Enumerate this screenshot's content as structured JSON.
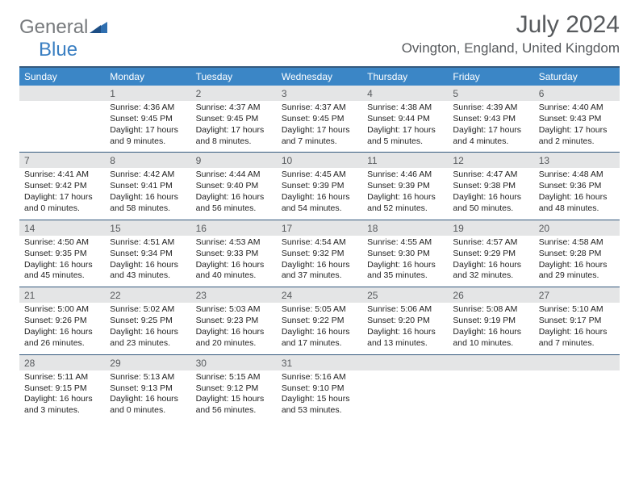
{
  "logo": {
    "general": "General",
    "blue": "Blue"
  },
  "title": "July 2024",
  "location": "Ovington, England, United Kingdom",
  "dayNames": [
    "Sunday",
    "Monday",
    "Tuesday",
    "Wednesday",
    "Thursday",
    "Friday",
    "Saturday"
  ],
  "colors": {
    "headerBar": "#3b86c6",
    "borderTop": "#34597d",
    "daynumBg": "#e4e5e6",
    "textDark": "#222222",
    "textMuted": "#575a5d",
    "logoGray": "#777a7d",
    "logoBlue": "#3a7fc2"
  },
  "weeks": [
    {
      "nums": [
        "",
        "1",
        "2",
        "3",
        "4",
        "5",
        "6"
      ],
      "cells": [
        {},
        {
          "sr": "4:36 AM",
          "ss": "9:45 PM",
          "dl": "17 hours and 9 minutes."
        },
        {
          "sr": "4:37 AM",
          "ss": "9:45 PM",
          "dl": "17 hours and 8 minutes."
        },
        {
          "sr": "4:37 AM",
          "ss": "9:45 PM",
          "dl": "17 hours and 7 minutes."
        },
        {
          "sr": "4:38 AM",
          "ss": "9:44 PM",
          "dl": "17 hours and 5 minutes."
        },
        {
          "sr": "4:39 AM",
          "ss": "9:43 PM",
          "dl": "17 hours and 4 minutes."
        },
        {
          "sr": "4:40 AM",
          "ss": "9:43 PM",
          "dl": "17 hours and 2 minutes."
        }
      ]
    },
    {
      "nums": [
        "7",
        "8",
        "9",
        "10",
        "11",
        "12",
        "13"
      ],
      "cells": [
        {
          "sr": "4:41 AM",
          "ss": "9:42 PM",
          "dl": "17 hours and 0 minutes."
        },
        {
          "sr": "4:42 AM",
          "ss": "9:41 PM",
          "dl": "16 hours and 58 minutes."
        },
        {
          "sr": "4:44 AM",
          "ss": "9:40 PM",
          "dl": "16 hours and 56 minutes."
        },
        {
          "sr": "4:45 AM",
          "ss": "9:39 PM",
          "dl": "16 hours and 54 minutes."
        },
        {
          "sr": "4:46 AM",
          "ss": "9:39 PM",
          "dl": "16 hours and 52 minutes."
        },
        {
          "sr": "4:47 AM",
          "ss": "9:38 PM",
          "dl": "16 hours and 50 minutes."
        },
        {
          "sr": "4:48 AM",
          "ss": "9:36 PM",
          "dl": "16 hours and 48 minutes."
        }
      ]
    },
    {
      "nums": [
        "14",
        "15",
        "16",
        "17",
        "18",
        "19",
        "20"
      ],
      "cells": [
        {
          "sr": "4:50 AM",
          "ss": "9:35 PM",
          "dl": "16 hours and 45 minutes."
        },
        {
          "sr": "4:51 AM",
          "ss": "9:34 PM",
          "dl": "16 hours and 43 minutes."
        },
        {
          "sr": "4:53 AM",
          "ss": "9:33 PM",
          "dl": "16 hours and 40 minutes."
        },
        {
          "sr": "4:54 AM",
          "ss": "9:32 PM",
          "dl": "16 hours and 37 minutes."
        },
        {
          "sr": "4:55 AM",
          "ss": "9:30 PM",
          "dl": "16 hours and 35 minutes."
        },
        {
          "sr": "4:57 AM",
          "ss": "9:29 PM",
          "dl": "16 hours and 32 minutes."
        },
        {
          "sr": "4:58 AM",
          "ss": "9:28 PM",
          "dl": "16 hours and 29 minutes."
        }
      ]
    },
    {
      "nums": [
        "21",
        "22",
        "23",
        "24",
        "25",
        "26",
        "27"
      ],
      "cells": [
        {
          "sr": "5:00 AM",
          "ss": "9:26 PM",
          "dl": "16 hours and 26 minutes."
        },
        {
          "sr": "5:02 AM",
          "ss": "9:25 PM",
          "dl": "16 hours and 23 minutes."
        },
        {
          "sr": "5:03 AM",
          "ss": "9:23 PM",
          "dl": "16 hours and 20 minutes."
        },
        {
          "sr": "5:05 AM",
          "ss": "9:22 PM",
          "dl": "16 hours and 17 minutes."
        },
        {
          "sr": "5:06 AM",
          "ss": "9:20 PM",
          "dl": "16 hours and 13 minutes."
        },
        {
          "sr": "5:08 AM",
          "ss": "9:19 PM",
          "dl": "16 hours and 10 minutes."
        },
        {
          "sr": "5:10 AM",
          "ss": "9:17 PM",
          "dl": "16 hours and 7 minutes."
        }
      ]
    },
    {
      "nums": [
        "28",
        "29",
        "30",
        "31",
        "",
        "",
        ""
      ],
      "cells": [
        {
          "sr": "5:11 AM",
          "ss": "9:15 PM",
          "dl": "16 hours and 3 minutes."
        },
        {
          "sr": "5:13 AM",
          "ss": "9:13 PM",
          "dl": "16 hours and 0 minutes."
        },
        {
          "sr": "5:15 AM",
          "ss": "9:12 PM",
          "dl": "15 hours and 56 minutes."
        },
        {
          "sr": "5:16 AM",
          "ss": "9:10 PM",
          "dl": "15 hours and 53 minutes."
        },
        {},
        {},
        {}
      ]
    }
  ],
  "labels": {
    "sunrise": "Sunrise: ",
    "sunset": "Sunset: ",
    "daylight": "Daylight: "
  }
}
